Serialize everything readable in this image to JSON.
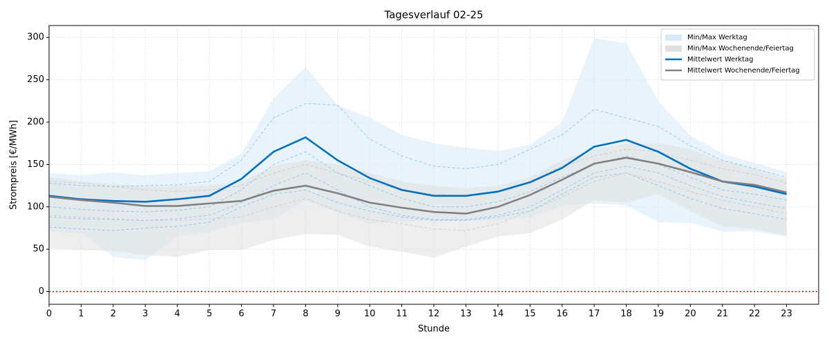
{
  "chart_data": {
    "type": "line",
    "title": "Tagesverlauf 02-25",
    "x_label": "Stunde",
    "y_label": "Strompreis [€/MWh]",
    "x": [
      0,
      1,
      2,
      3,
      4,
      5,
      6,
      7,
      8,
      9,
      10,
      11,
      12,
      13,
      14,
      15,
      16,
      17,
      18,
      19,
      20,
      21,
      22,
      23
    ],
    "xlim": [
      0,
      24
    ],
    "ylim": [
      -15,
      314
    ],
    "xticks": [
      0,
      1,
      2,
      3,
      4,
      5,
      6,
      7,
      8,
      9,
      10,
      11,
      12,
      13,
      14,
      15,
      16,
      17,
      18,
      19,
      20,
      21,
      22,
      23
    ],
    "yticks": [
      0,
      50,
      100,
      150,
      200,
      250,
      300
    ],
    "grid": true,
    "legend": "upper right",
    "reference_line": {
      "value": 0,
      "color": "#ff0000"
    },
    "bands": [
      {
        "name": "Min/Max Werktag",
        "color": "#d6eaf8",
        "upper": [
          140,
          137,
          141,
          137,
          140,
          142,
          163,
          228,
          265,
          220,
          205,
          185,
          175,
          170,
          166,
          173,
          200,
          299,
          293,
          225,
          184,
          163,
          152,
          141
        ],
        "lower": [
          71,
          69,
          41,
          37,
          65,
          70,
          81,
          85,
          108,
          93,
          80,
          83,
          84,
          83,
          84,
          88,
          101,
          104,
          102,
          82,
          81,
          71,
          71,
          65
        ]
      },
      {
        "name": "Min/Max Wochenende/Feiertag",
        "color": "#e0e0e0",
        "upper": [
          135,
          130,
          127,
          124,
          125,
          125,
          130,
          148,
          155,
          150,
          140,
          130,
          125,
          122,
          125,
          135,
          155,
          168,
          175,
          175,
          168,
          155,
          145,
          133
        ],
        "lower": [
          51,
          49,
          48,
          43,
          41,
          49,
          49,
          61,
          68,
          67,
          53,
          47,
          40,
          53,
          65,
          69,
          85,
          108,
          105,
          115,
          95,
          77,
          74,
          66
        ]
      }
    ],
    "series": [
      {
        "color": "#5ab4ec",
        "style": "dashed",
        "values": [
          128,
          125,
          124,
          125,
          126,
          130,
          155,
          205,
          222,
          220,
          180,
          160,
          148,
          145,
          150,
          168,
          185,
          215,
          205,
          195,
          172,
          155,
          145,
          135
        ]
      },
      {
        "color": "#5ab4ec",
        "style": "dashed",
        "values": [
          100,
          97,
          95,
          94,
          96,
          100,
          120,
          150,
          165,
          140,
          125,
          110,
          100,
          100,
          106,
          118,
          135,
          150,
          160,
          150,
          135,
          120,
          115,
          108
        ]
      },
      {
        "color": "#5ab4ec",
        "style": "dashed",
        "values": [
          88,
          86,
          85,
          84,
          86,
          90,
          105,
          125,
          140,
          120,
          100,
          90,
          85,
          85,
          90,
          100,
          120,
          140,
          148,
          140,
          125,
          112,
          105,
          98
        ]
      },
      {
        "color": "#5ab4ec",
        "style": "dashed",
        "values": [
          76,
          74,
          72,
          75,
          77,
          82,
          100,
          115,
          120,
          105,
          95,
          88,
          84,
          84,
          88,
          95,
          115,
          135,
          140,
          125,
          110,
          98,
          92,
          85
        ]
      },
      {
        "color": "#bdbdbd",
        "style": "dashed",
        "values": [
          130,
          128,
          124,
          120,
          118,
          120,
          125,
          140,
          150,
          140,
          130,
          120,
          115,
          113,
          118,
          130,
          148,
          160,
          168,
          165,
          155,
          145,
          138,
          128
        ]
      },
      {
        "color": "#bdbdbd",
        "style": "dashed",
        "values": [
          90,
          88,
          86,
          84,
          84,
          86,
          88,
          100,
          110,
          95,
          85,
          80,
          74,
          72,
          80,
          95,
          112,
          130,
          140,
          130,
          118,
          108,
          100,
          92
        ]
      },
      {
        "name": "Mittelwert Werktag",
        "color": "#0070c0",
        "style": "solid",
        "values": [
          113,
          109,
          107,
          106,
          109,
          113,
          133,
          165,
          182,
          155,
          134,
          120,
          113,
          113,
          118,
          129,
          146,
          171,
          179,
          165,
          145,
          130,
          124,
          115
        ]
      },
      {
        "name": "Mittelwert Wochenende/Feiertag",
        "color": "#808080",
        "style": "solid",
        "values": [
          112,
          108,
          105,
          101,
          101,
          104,
          107,
          119,
          125,
          116,
          105,
          99,
          94,
          92,
          100,
          114,
          132,
          151,
          158,
          151,
          141,
          130,
          126,
          117
        ]
      }
    ]
  }
}
